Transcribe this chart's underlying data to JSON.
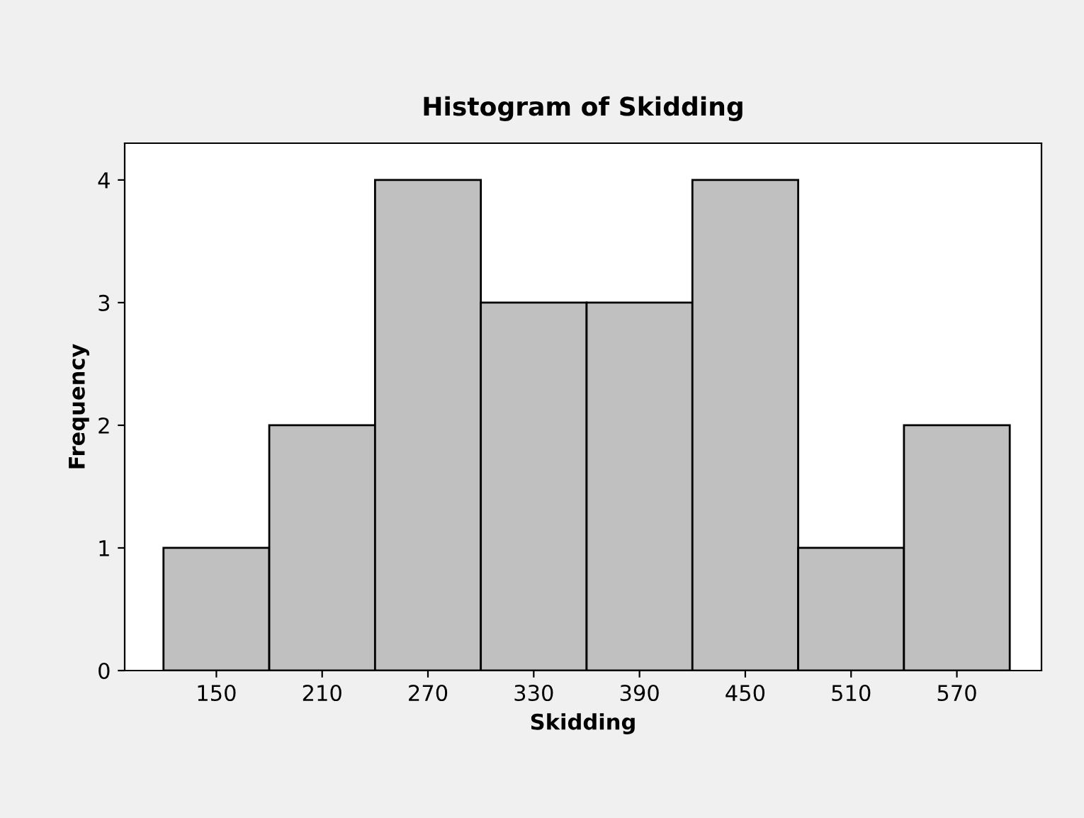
{
  "chart_data": {
    "type": "histogram",
    "title": "Histogram of Skidding",
    "xlabel": "Skidding",
    "ylabel": "Frequency",
    "bins": [
      120,
      180,
      240,
      300,
      360,
      420,
      480,
      540,
      600
    ],
    "values": [
      1,
      2,
      4,
      3,
      3,
      4,
      1,
      2
    ],
    "color": "#c0c0c0",
    "xlim": [
      98,
      618
    ],
    "xticks": [
      150,
      210,
      270,
      330,
      390,
      450,
      510,
      570
    ],
    "ylim": [
      0,
      4.3
    ],
    "yticks": [
      0,
      1,
      2,
      3,
      4
    ],
    "grid": false
  }
}
